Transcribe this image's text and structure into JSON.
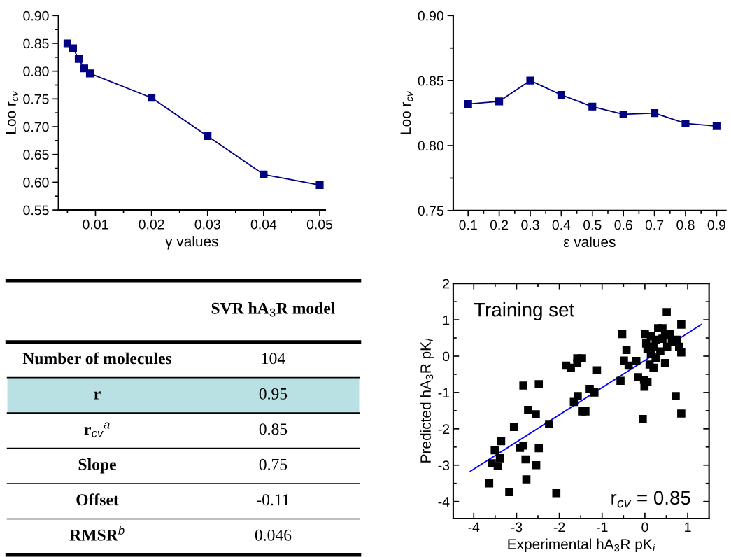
{
  "chart_data": [
    {
      "type": "line",
      "xlabel": "γ values",
      "ylabel": "Loo r$_{cv}$",
      "marker": "square",
      "grid": false,
      "x": [
        0.005,
        0.006,
        0.007,
        0.008,
        0.009,
        0.02,
        0.03,
        0.04,
        0.05
      ],
      "series": [
        {
          "color": "#000080",
          "values": [
            0.85,
            0.841,
            0.822,
            0.805,
            0.796,
            0.752,
            0.683,
            0.614,
            0.595
          ]
        }
      ],
      "xlim": [
        0.0034,
        0.051
      ],
      "ylim": [
        0.55,
        0.9
      ],
      "xticks": [
        {
          "value": 0.005,
          "label": null
        },
        {
          "value": 0.01,
          "label": "0.01"
        },
        {
          "value": 0.015,
          "label": null
        },
        {
          "value": 0.02,
          "label": "0.02"
        },
        {
          "value": 0.025,
          "label": null
        },
        {
          "value": 0.03,
          "label": "0.03"
        },
        {
          "value": 0.035,
          "label": null
        },
        {
          "value": 0.04,
          "label": "0.04"
        },
        {
          "value": 0.045,
          "label": null
        },
        {
          "value": 0.05,
          "label": "0.05"
        }
      ],
      "yticks": [
        {
          "value": 0.55,
          "label": "0.55"
        },
        {
          "value": 0.575,
          "label": null
        },
        {
          "value": 0.6,
          "label": "0.60"
        },
        {
          "value": 0.625,
          "label": null
        },
        {
          "value": 0.65,
          "label": "0.65"
        },
        {
          "value": 0.675,
          "label": null
        },
        {
          "value": 0.7,
          "label": "0.70"
        },
        {
          "value": 0.725,
          "label": null
        },
        {
          "value": 0.75,
          "label": "0.75"
        },
        {
          "value": 0.775,
          "label": null
        },
        {
          "value": 0.8,
          "label": "0.80"
        },
        {
          "value": 0.825,
          "label": null
        },
        {
          "value": 0.85,
          "label": "0.85"
        },
        {
          "value": 0.875,
          "label": null
        },
        {
          "value": 0.9,
          "label": "0.90"
        }
      ]
    },
    {
      "type": "line",
      "xlabel": "ε values",
      "ylabel": "Loo r$_{cv}$",
      "marker": "square",
      "grid": false,
      "x": [
        0.1,
        0.2,
        0.3,
        0.4,
        0.5,
        0.6,
        0.7,
        0.8,
        0.9
      ],
      "series": [
        {
          "color": "#000080",
          "values": [
            0.832,
            0.834,
            0.85,
            0.839,
            0.83,
            0.824,
            0.825,
            0.817,
            0.815
          ]
        }
      ],
      "xlim": [
        0.052,
        0.93
      ],
      "ylim": [
        0.75,
        0.9
      ],
      "xticks": [
        0.1,
        {
          "value": 0.15,
          "label": null
        },
        0.2,
        {
          "value": 0.25,
          "label": null
        },
        0.3,
        {
          "value": 0.35,
          "label": null
        },
        0.4,
        {
          "value": 0.45,
          "label": null
        },
        0.5,
        {
          "value": 0.55,
          "label": null
        },
        0.6,
        {
          "value": 0.65,
          "label": null
        },
        0.7,
        {
          "value": 0.75,
          "label": null
        },
        0.8,
        {
          "value": 0.85,
          "label": null
        },
        0.9
      ],
      "yticks": [
        {
          "value": 0.75,
          "label": "0.75"
        },
        {
          "value": 0.775,
          "label": null
        },
        {
          "value": 0.8,
          "label": "0.80"
        },
        {
          "value": 0.825,
          "label": null
        },
        {
          "value": 0.85,
          "label": "0.85"
        },
        {
          "value": 0.875,
          "label": null
        },
        {
          "value": 0.9,
          "label": "0.90"
        }
      ]
    },
    {
      "type": "other",
      "title": "SVR hA$_{3}$R model",
      "categories": [
        "Number of molecules",
        "r",
        "r$_{cv}$$^{a}$",
        "Slope",
        "Offset",
        "RMSR$^{b}$"
      ],
      "value_labels": [
        "104",
        "0.95",
        "0.85",
        "0.75",
        "-0.11",
        "0.046"
      ],
      "colors": [
        "#ffffff",
        "#b9e0e3",
        "#ffffff",
        "#ffffff",
        "#ffffff",
        "#ffffff"
      ]
    },
    {
      "type": "scatter",
      "xlabel": "Experimental hA$_{3}$R pK$_{i}$",
      "ylabel": "Predicted hA$_{3}$R pK$_{i}$",
      "grid": false,
      "annotations": [
        "Training set",
        "r$_{cv}$ = 0.85"
      ],
      "series": [
        {
          "type": "scatter",
          "marker": "square",
          "color": "#000000",
          "x": [
            0.51,
            0.85,
            -0.53,
            -0.43,
            -0.49,
            -0.38,
            -0.2,
            -0.16,
            -0.02,
            -0.01,
            0.06,
            -0.57,
            -0.05,
            0.72,
            0.85,
            0.85,
            0.8,
            0.47,
            0.47,
            0.0,
            0.14,
            0.31,
            0.41,
            0.58,
            0.03,
            0.06,
            0.2,
            0.14,
            0.25,
            0.11,
            0.2,
            0.36,
            0.52,
            0.63,
            0.74,
            0.25,
            0.41,
            -1.84,
            -1.73,
            -1.58,
            -1.47,
            -1.58,
            -1.12,
            -1.29,
            -1.18,
            -1.57,
            -1.66,
            -1.47,
            -1.39,
            -2.24,
            -2.84,
            -2.48,
            -2.73,
            -2.55,
            -3.06,
            -3.36,
            -3.51,
            -2.84,
            -2.92,
            -2.48,
            -2.79,
            -2.54,
            -3.39,
            -3.58,
            -3.44,
            -2.77,
            -3.64,
            -3.17,
            -2.07
          ],
          "values": [
            1.21,
            0.87,
            0.61,
            0.17,
            -0.12,
            -0.26,
            -0.13,
            -0.58,
            -0.65,
            -0.84,
            -0.71,
            -0.68,
            -1.73,
            -1.1,
            -1.58,
            0.1,
            0.26,
            -0.19,
            0.58,
            0.61,
            0.55,
            0.77,
            0.77,
            0.61,
            0.35,
            0.19,
            0.26,
            0.06,
            -0.06,
            -0.23,
            -0.32,
            0.13,
            0.26,
            0.39,
            0.45,
            0.45,
            0.48,
            -0.26,
            -0.32,
            -0.19,
            -0.06,
            -0.06,
            -0.39,
            -0.9,
            -1.0,
            -1.1,
            -1.26,
            -1.52,
            -1.52,
            -1.87,
            -0.81,
            -0.77,
            -1.48,
            -1.6,
            -1.95,
            -2.34,
            -2.59,
            -2.46,
            -2.52,
            -2.53,
            -2.84,
            -3.0,
            -2.81,
            -2.95,
            -3.03,
            -3.39,
            -3.5,
            -3.74,
            -3.77
          ]
        },
        {
          "type": "line",
          "marker": "none",
          "color": "#0000ff",
          "x": [
            -4.08,
            1.32
          ],
          "values": [
            -3.17,
            0.87
          ]
        }
      ],
      "xlim": [
        -4.48,
        1.5
      ],
      "ylim": [
        -4.47,
        2
      ],
      "xticks": [
        -4,
        {
          "value": -3.5,
          "label": null
        },
        -3,
        {
          "value": -2.5,
          "label": null
        },
        -2,
        {
          "value": -1.5,
          "label": null
        },
        -1,
        {
          "value": -0.5,
          "label": null
        },
        0,
        {
          "value": 0.5,
          "label": null
        },
        1
      ],
      "yticks": [
        -4,
        {
          "value": -3.5,
          "label": null
        },
        -3,
        {
          "value": -2.5,
          "label": null
        },
        -2,
        {
          "value": -1.5,
          "label": null
        },
        -1,
        {
          "value": -0.5,
          "label": null
        },
        0,
        {
          "value": 0.5,
          "label": null
        },
        1,
        {
          "value": 1.5,
          "label": null
        },
        2
      ]
    }
  ]
}
